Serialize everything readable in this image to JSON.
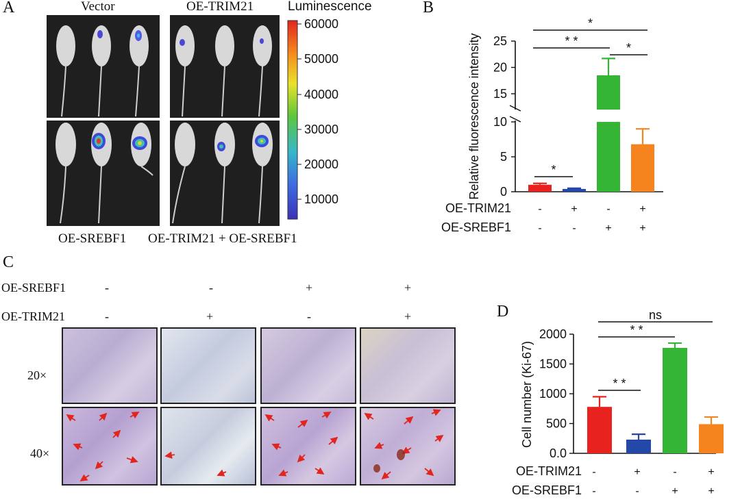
{
  "panel_a": {
    "letter": "A",
    "top_labels": [
      "Vector",
      "OE-TRIM21"
    ],
    "bottom_labels": [
      "OE-SREBF1",
      "OE-TRIM21 + OE-SREBF1"
    ],
    "colorbar_title": "Luminescence",
    "colorbar_ticks": [
      "60000",
      "50000",
      "40000",
      "30000",
      "20000",
      "10000"
    ]
  },
  "panel_b": {
    "letter": "B",
    "conditions": {
      "row1_label": "OE-TRIM21",
      "row1": [
        "-",
        "+",
        "-",
        "+"
      ],
      "row2_label": "OE-SREBF1",
      "row2": [
        "-",
        "-",
        "+",
        "+"
      ]
    },
    "significance": [
      "*",
      "* *",
      "*",
      "*"
    ]
  },
  "panel_c": {
    "letter": "C",
    "row_labels": [
      "OE-SREBF1",
      "OE-TRIM21"
    ],
    "srebf1": [
      "-",
      "-",
      "+",
      "+"
    ],
    "trim21": [
      "-",
      "+",
      "-",
      "+"
    ],
    "magnifications": [
      "20×",
      "40×"
    ]
  },
  "panel_d": {
    "letter": "D",
    "conditions": {
      "row1_label": "OE-TRIM21",
      "row1": [
        "-",
        "+",
        "-",
        "+"
      ],
      "row2_label": "OE-SREBF1",
      "row2": [
        "-",
        "-",
        "+",
        "+"
      ]
    },
    "significance": [
      "ns",
      "* *",
      "* *"
    ]
  },
  "chart_data": [
    {
      "type": "bar",
      "panel": "B",
      "ylabel": "Relative fluorescence intensity",
      "axis_break": [
        10,
        12
      ],
      "ylim": [
        0,
        25
      ],
      "yticks": [
        "0",
        "5",
        "10",
        "15",
        "20",
        "25"
      ],
      "categories": [
        "Vector",
        "OE-TRIM21",
        "OE-SREBF1",
        "OE-TRIM21 + OE-SREBF1"
      ],
      "values": [
        1.0,
        0.4,
        18.5,
        6.8
      ],
      "errors": [
        0.2,
        0.1,
        3.2,
        2.2
      ],
      "colors": [
        "#e8231f",
        "#2448a8",
        "#35b536",
        "#f5841f"
      ]
    },
    {
      "type": "bar",
      "panel": "D",
      "ylabel": "Cell number (Ki-67)",
      "ylim": [
        0,
        2000
      ],
      "yticks": [
        "0.0",
        "500",
        "1000",
        "1500",
        "2000"
      ],
      "categories": [
        "Vector",
        "OE-TRIM21",
        "OE-SREBF1",
        "OE-TRIM21 + OE-SREBF1"
      ],
      "values": [
        780,
        230,
        1770,
        490
      ],
      "errors": [
        170,
        90,
        80,
        120
      ],
      "colors": [
        "#e8231f",
        "#2448a8",
        "#35b536",
        "#f5841f"
      ]
    }
  ]
}
